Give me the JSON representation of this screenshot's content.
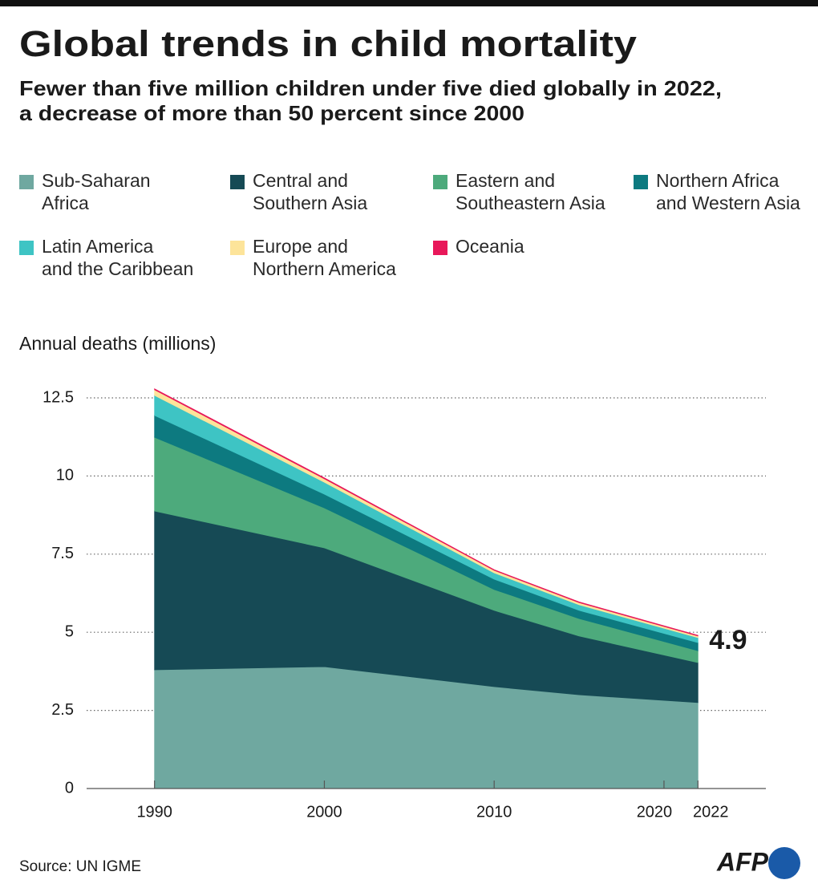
{
  "chart_data": {
    "type": "stacked_area",
    "title": "Global trends in child mortality",
    "subtitle": [
      "Fewer than five million children under five died globally in 2022,",
      "a decrease of more than 50 percent since 2000"
    ],
    "y_axis_label": "Annual deaths (millions)",
    "x": [
      1990,
      2000,
      2010,
      2015,
      2022
    ],
    "xlim": [
      1986,
      2026
    ],
    "xticks": [
      1990,
      2000,
      2010,
      2020,
      2022
    ],
    "ylim": [
      0,
      12.5
    ],
    "yticks": [
      0,
      2.5,
      5,
      7.5,
      10,
      12.5
    ],
    "grid": true,
    "series": [
      {
        "name": "Sub-Saharan Africa",
        "color": "#6fa8a0",
        "values": [
          3.8,
          3.9,
          3.26,
          3.0,
          2.75
        ]
      },
      {
        "name": "Central and Southern Asia",
        "color": "#164a55",
        "values": [
          5.08,
          3.8,
          2.44,
          1.88,
          1.28
        ]
      },
      {
        "name": "Eastern and Southeastern Asia",
        "color": "#4daa7c",
        "values": [
          2.36,
          1.28,
          0.67,
          0.56,
          0.38
        ]
      },
      {
        "name": "Northern Africa and Western Asia",
        "color": "#0d7a80",
        "values": [
          0.7,
          0.44,
          0.33,
          0.26,
          0.26
        ]
      },
      {
        "name": "Latin America and the Caribbean",
        "color": "#3ec4c4",
        "values": [
          0.64,
          0.38,
          0.2,
          0.18,
          0.16
        ]
      },
      {
        "name": "Europe and Northern America",
        "color": "#fde49a",
        "values": [
          0.18,
          0.11,
          0.08,
          0.07,
          0.05
        ]
      },
      {
        "name": "Oceania",
        "color": "#e8185a",
        "values": [
          0.03,
          0.03,
          0.02,
          0.02,
          0.02
        ]
      }
    ],
    "annotation": "4.9",
    "source": "Source: UN IGME",
    "logo": "AFP"
  }
}
